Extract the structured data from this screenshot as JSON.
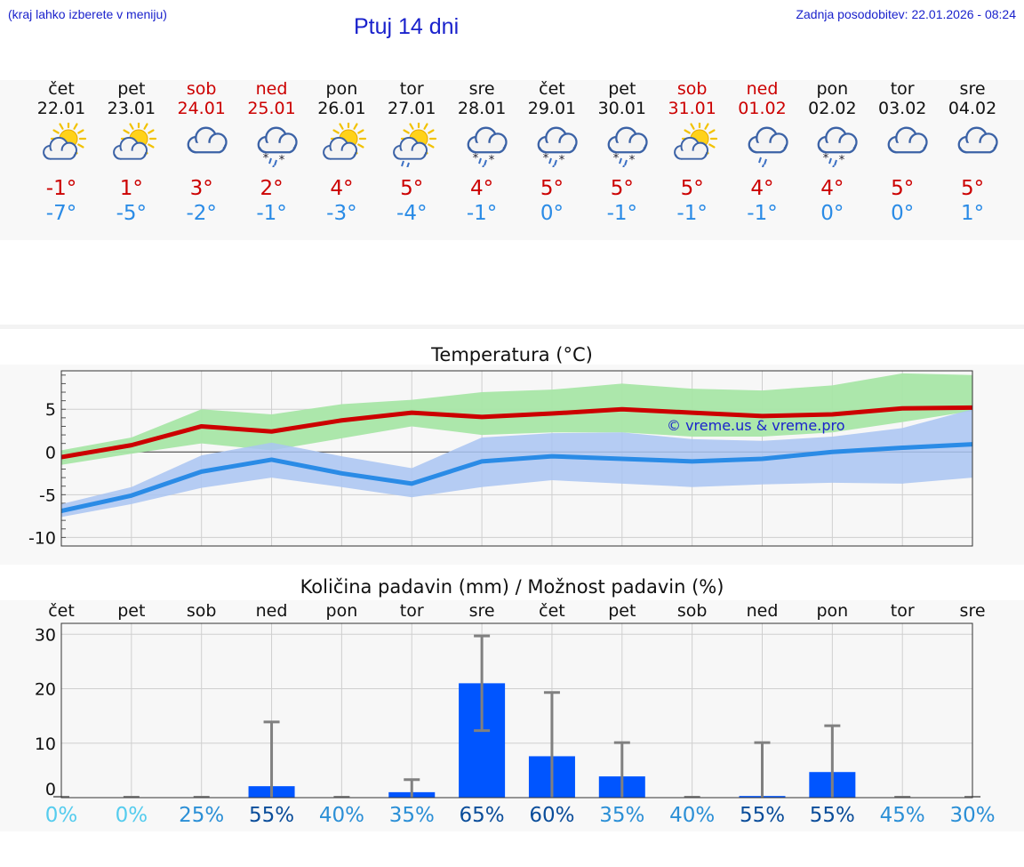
{
  "header": {
    "hint": "(kraj lahko izberete v meniju)",
    "title": "Ptuj 14 dni",
    "updated": "Zadnja posodobitev: 22.01.2026 - 08:24"
  },
  "days": [
    {
      "name": "čet",
      "date": "22.01",
      "weekend": false,
      "icon": "partly-sunny-icon",
      "max": "-1°",
      "min": "-7°"
    },
    {
      "name": "pet",
      "date": "23.01",
      "weekend": false,
      "icon": "partly-sunny-icon",
      "max": "1°",
      "min": "-5°"
    },
    {
      "name": "sob",
      "date": "24.01",
      "weekend": true,
      "icon": "cloudy-icon",
      "max": "3°",
      "min": "-2°"
    },
    {
      "name": "ned",
      "date": "25.01",
      "weekend": true,
      "icon": "rain-snow-icon",
      "max": "2°",
      "min": "-1°"
    },
    {
      "name": "pon",
      "date": "26.01",
      "weekend": false,
      "icon": "partly-sunny-icon",
      "max": "4°",
      "min": "-3°"
    },
    {
      "name": "tor",
      "date": "27.01",
      "weekend": false,
      "icon": "sun-rain-icon",
      "max": "5°",
      "min": "-4°"
    },
    {
      "name": "sre",
      "date": "28.01",
      "weekend": false,
      "icon": "rain-snow-icon",
      "max": "4°",
      "min": "-1°"
    },
    {
      "name": "čet",
      "date": "29.01",
      "weekend": false,
      "icon": "rain-snow-icon",
      "max": "5°",
      "min": "0°"
    },
    {
      "name": "pet",
      "date": "30.01",
      "weekend": false,
      "icon": "rain-snow-icon",
      "max": "5°",
      "min": "-1°"
    },
    {
      "name": "sob",
      "date": "31.01",
      "weekend": true,
      "icon": "partly-sunny-icon",
      "max": "5°",
      "min": "-1°"
    },
    {
      "name": "ned",
      "date": "01.02",
      "weekend": true,
      "icon": "rain-icon",
      "max": "4°",
      "min": "-1°"
    },
    {
      "name": "pon",
      "date": "02.02",
      "weekend": false,
      "icon": "rain-snow-icon",
      "max": "4°",
      "min": "0°"
    },
    {
      "name": "tor",
      "date": "03.02",
      "weekend": false,
      "icon": "cloudy-icon",
      "max": "5°",
      "min": "0°"
    },
    {
      "name": "sre",
      "date": "04.02",
      "weekend": false,
      "icon": "cloudy-icon",
      "max": "5°",
      "min": "1°"
    }
  ],
  "colors": {
    "max": "#cc0000",
    "min": "#2a8be6",
    "bar": "#0055ff",
    "maxband": "#a8e6a6",
    "minband": "#a9c4f2"
  },
  "chart_data": [
    {
      "type": "line",
      "title": "Temperatura (°C)",
      "watermark": "© vreme.us & vreme.pro",
      "x": [
        "22.01",
        "23.01",
        "24.01",
        "25.01",
        "26.01",
        "27.01",
        "28.01",
        "29.01",
        "30.01",
        "31.01",
        "01.02",
        "02.02",
        "03.02",
        "04.02"
      ],
      "ylim": [
        -11,
        9.5
      ],
      "yticks": [
        5,
        0,
        -5,
        -10
      ],
      "series": [
        {
          "name": "max",
          "values": [
            -0.6,
            0.8,
            3.0,
            2.4,
            3.7,
            4.6,
            4.1,
            4.5,
            5.0,
            4.6,
            4.2,
            4.4,
            5.1,
            5.2
          ],
          "band_low": [
            -1.5,
            -0.2,
            1.0,
            0.2,
            1.6,
            3.0,
            2.0,
            2.3,
            2.3,
            1.8,
            1.8,
            2.3,
            3.5,
            4.8
          ],
          "band_high": [
            0.2,
            1.7,
            5.0,
            4.4,
            5.6,
            6.1,
            7.0,
            7.3,
            8.0,
            7.4,
            7.2,
            7.8,
            9.2,
            9.0
          ]
        },
        {
          "name": "min",
          "values": [
            -6.9,
            -5.1,
            -2.3,
            -0.9,
            -2.5,
            -3.7,
            -1.1,
            -0.5,
            -0.8,
            -1.1,
            -0.8,
            0.0,
            0.5,
            0.9
          ],
          "band_low": [
            -7.6,
            -6.1,
            -4.2,
            -3.0,
            -4.1,
            -5.3,
            -4.1,
            -3.3,
            -3.7,
            -4.1,
            -3.8,
            -3.6,
            -3.7,
            -3.0
          ],
          "band_high": [
            -6.1,
            -4.1,
            -0.4,
            1.1,
            -0.5,
            -1.9,
            1.7,
            2.2,
            2.3,
            1.5,
            1.3,
            1.8,
            2.8,
            5.0
          ]
        }
      ]
    },
    {
      "type": "bar",
      "title": "Količina padavin (mm) / Možnost padavin (%)",
      "categories": [
        "čet",
        "pet",
        "sob",
        "ned",
        "pon",
        "tor",
        "sre",
        "čet",
        "pet",
        "sob",
        "ned",
        "pon",
        "tor",
        "sre"
      ],
      "values": [
        0,
        0,
        0,
        2.1,
        0,
        1.0,
        21.0,
        7.6,
        3.9,
        0,
        0.3,
        4.7,
        0,
        0
      ],
      "err_high": [
        0,
        0,
        0,
        13.9,
        0,
        3.3,
        29.7,
        19.3,
        10.1,
        0,
        10.1,
        13.2,
        0,
        0
      ],
      "err_low": [
        0,
        0,
        0,
        0,
        0,
        0,
        12.3,
        0,
        0,
        0,
        0,
        0,
        0,
        0
      ],
      "probability": [
        "0%",
        "0%",
        "25%",
        "55%",
        "40%",
        "35%",
        "65%",
        "60%",
        "35%",
        "40%",
        "55%",
        "55%",
        "45%",
        "30%"
      ],
      "probability_colors": [
        "#55ccee",
        "#55ccee",
        "#2b8fd6",
        "#0a4d9a",
        "#2b8fd6",
        "#2b8fd6",
        "#0a4d9a",
        "#0a4d9a",
        "#2b8fd6",
        "#2b8fd6",
        "#0a4d9a",
        "#0a4d9a",
        "#2b8fd6",
        "#2b8fd6"
      ],
      "ylim": [
        0,
        32
      ],
      "yticks": [
        30,
        20,
        10,
        0
      ]
    }
  ]
}
